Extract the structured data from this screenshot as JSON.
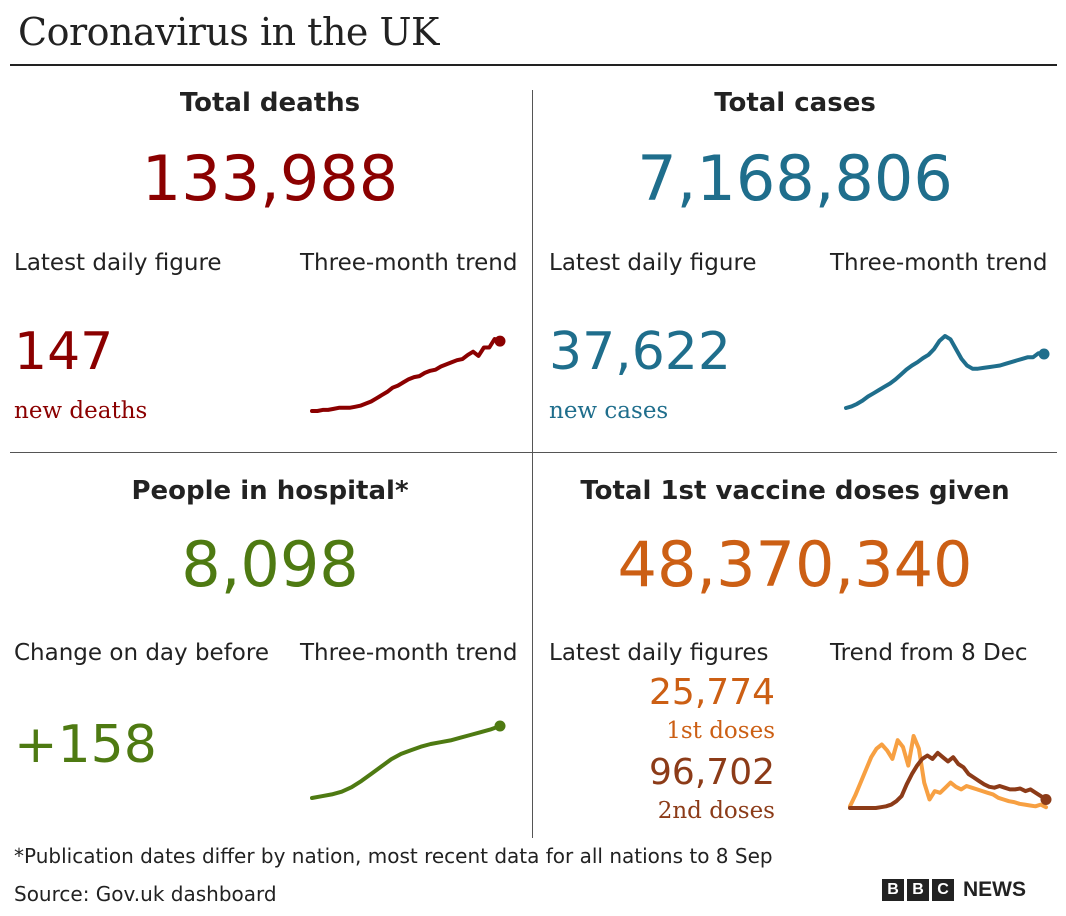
{
  "title": "Coronavirus in the UK",
  "colors": {
    "deaths": "#8b0000",
    "cases": "#1f6e8c",
    "hospital": "#4e7a12",
    "vaccine": "#cc5f14",
    "first_dose_line": "#f7a042",
    "second_dose": "#8c3b18"
  },
  "deaths": {
    "heading": "Total deaths",
    "total": "133,988",
    "latest_label": "Latest daily figure",
    "trend_label": "Three-month trend",
    "latest_value": "147",
    "latest_unit": "new deaths"
  },
  "cases": {
    "heading": "Total cases",
    "total": "7,168,806",
    "latest_label": "Latest daily figure",
    "trend_label": "Three-month trend",
    "latest_value": "37,622",
    "latest_unit": "new cases"
  },
  "hospital": {
    "heading": "People in hospital*",
    "total": "8,098",
    "latest_label": "Change on day before",
    "trend_label": "Three-month trend",
    "latest_value": "+158"
  },
  "vaccine": {
    "heading": "Total 1st vaccine doses given",
    "total": "48,370,340",
    "latest_label": "Latest daily figures",
    "trend_label": "Trend from 8 Dec",
    "first_value": "25,774",
    "first_unit": "1st doses",
    "second_value": "96,702",
    "second_unit": "2nd doses"
  },
  "footnote": "*Publication dates differ by nation, most recent data for all nations to 8 Sep",
  "source": "Source: Gov.uk dashboard",
  "brand": {
    "letters": [
      "B",
      "B",
      "C"
    ],
    "news": "NEWS"
  },
  "chart_data": [
    {
      "type": "line",
      "title": "Total deaths three-month trend",
      "series": [
        {
          "name": "deaths",
          "values": [
            2,
            2,
            3,
            3,
            4,
            5,
            5,
            5,
            6,
            7,
            9,
            11,
            14,
            17,
            20,
            24,
            26,
            29,
            32,
            34,
            35,
            38,
            40,
            41,
            44,
            46,
            48,
            50,
            51,
            55,
            58,
            54,
            62,
            62,
            70,
            68
          ]
        }
      ]
    },
    {
      "type": "line",
      "title": "Total cases three-month trend",
      "series": [
        {
          "name": "cases",
          "values": [
            10,
            12,
            15,
            19,
            24,
            28,
            32,
            36,
            40,
            45,
            51,
            57,
            62,
            66,
            71,
            75,
            82,
            92,
            98,
            94,
            82,
            70,
            62,
            58,
            58,
            59,
            60,
            61,
            62,
            64,
            66,
            68,
            70,
            72,
            72,
            77,
            76
          ]
        }
      ]
    },
    {
      "type": "line",
      "title": "People in hospital three-month trend",
      "series": [
        {
          "name": "hospital",
          "values": [
            3,
            5,
            7,
            10,
            15,
            22,
            30,
            38,
            46,
            52,
            56,
            60,
            63,
            65,
            67,
            70,
            73,
            76,
            79,
            83
          ]
        }
      ]
    },
    {
      "type": "line",
      "title": "Vaccine doses trend from 8 Dec",
      "series": [
        {
          "name": "1st doses",
          "values": [
            2,
            15,
            30,
            45,
            60,
            70,
            75,
            68,
            58,
            80,
            72,
            50,
            85,
            70,
            30,
            10,
            20,
            18,
            24,
            30,
            25,
            22,
            26,
            24,
            22,
            20,
            18,
            16,
            12,
            10,
            8,
            7,
            5,
            4,
            3,
            2,
            4,
            1
          ]
        },
        {
          "name": "2nd doses",
          "values": [
            0,
            0,
            0,
            0,
            0,
            0,
            1,
            2,
            4,
            8,
            14,
            28,
            40,
            50,
            58,
            62,
            58,
            65,
            60,
            55,
            60,
            52,
            48,
            40,
            36,
            32,
            28,
            25,
            24,
            26,
            24,
            22,
            22,
            23,
            20,
            22,
            18,
            14,
            10
          ]
        }
      ]
    }
  ]
}
